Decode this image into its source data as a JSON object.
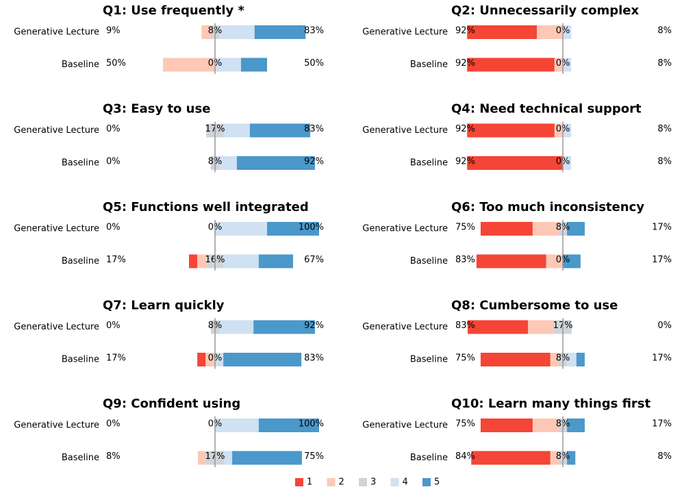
{
  "chart_data": {
    "type": "likert",
    "levels": [
      "1",
      "2",
      "3",
      "4",
      "5"
    ],
    "colors": [
      "#f44536",
      "#fdc8b5",
      "#d0d4da",
      "#cfe1f2",
      "#4b98ca"
    ],
    "xlim": [
      -100,
      100
    ],
    "panels": [
      {
        "title": "Q1: Use frequently *",
        "categories": [
          "Generative Lecture",
          "Baseline"
        ],
        "values": [
          [
            0,
            9,
            8,
            34,
            49
          ],
          [
            0,
            50,
            0,
            25,
            25
          ]
        ],
        "negative_labels": [
          "9%",
          "50%"
        ],
        "neutral_labels": [
          "8%",
          "0%"
        ],
        "positive_labels": [
          "83%",
          "50%"
        ]
      },
      {
        "title": "Q2: Unnecessarily complex",
        "categories": [
          "Generative Lecture",
          "Baseline"
        ],
        "values": [
          [
            67,
            25,
            0,
            8,
            0
          ],
          [
            84,
            8,
            0,
            8,
            0
          ]
        ],
        "negative_labels": [
          "92%",
          "92%"
        ],
        "neutral_labels": [
          "0%",
          "0%"
        ],
        "positive_labels": [
          "8%",
          "8%"
        ]
      },
      {
        "title": "Q3: Easy to use",
        "categories": [
          "Generative Lecture",
          "Baseline"
        ],
        "values": [
          [
            0,
            0,
            17,
            25,
            58
          ],
          [
            0,
            0,
            8,
            17,
            75
          ]
        ],
        "negative_labels": [
          "0%",
          "0%"
        ],
        "neutral_labels": [
          "17%",
          "8%"
        ],
        "positive_labels": [
          "83%",
          "92%"
        ]
      },
      {
        "title": "Q4: Need technical support",
        "categories": [
          "Generative Lecture",
          "Baseline"
        ],
        "values": [
          [
            84,
            8,
            0,
            8,
            0
          ],
          [
            92,
            0,
            0,
            8,
            0
          ]
        ],
        "negative_labels": [
          "92%",
          "92%"
        ],
        "neutral_labels": [
          "0%",
          "0%"
        ],
        "positive_labels": [
          "8%",
          "8%"
        ]
      },
      {
        "title": "Q5: Functions well integrated",
        "categories": [
          "Generative Lecture",
          "Baseline"
        ],
        "values": [
          [
            0,
            0,
            0,
            50,
            50
          ],
          [
            8,
            9,
            16,
            34,
            33
          ]
        ],
        "negative_labels": [
          "0%",
          "17%"
        ],
        "neutral_labels": [
          "0%",
          "16%"
        ],
        "positive_labels": [
          "100%",
          "67%"
        ]
      },
      {
        "title": "Q6: Too much inconsistency",
        "categories": [
          "Generative Lecture",
          "Baseline"
        ],
        "values": [
          [
            50,
            25,
            8,
            0,
            17
          ],
          [
            67,
            16,
            0,
            0,
            17
          ]
        ],
        "negative_labels": [
          "75%",
          "83%"
        ],
        "neutral_labels": [
          "8%",
          "0%"
        ],
        "positive_labels": [
          "17%",
          "17%"
        ]
      },
      {
        "title": "Q7: Learn quickly",
        "categories": [
          "Generative Lecture",
          "Baseline"
        ],
        "values": [
          [
            0,
            0,
            8,
            33,
            59
          ],
          [
            8,
            9,
            0,
            8,
            75
          ]
        ],
        "negative_labels": [
          "0%",
          "17%"
        ],
        "neutral_labels": [
          "8%",
          "0%"
        ],
        "positive_labels": [
          "92%",
          "83%"
        ]
      },
      {
        "title": "Q8: Cumbersome to use",
        "categories": [
          "Generative Lecture",
          "Baseline"
        ],
        "values": [
          [
            58,
            25,
            17,
            0,
            0
          ],
          [
            67,
            8,
            8,
            9,
            8
          ]
        ],
        "negative_labels": [
          "83%",
          "75%"
        ],
        "neutral_labels": [
          "17%",
          "8%"
        ],
        "positive_labels": [
          "0%",
          "17%"
        ]
      },
      {
        "title": "Q9: Confident using",
        "categories": [
          "Generative Lecture",
          "Baseline"
        ],
        "values": [
          [
            0,
            0,
            0,
            42,
            58
          ],
          [
            0,
            8,
            17,
            8,
            67
          ]
        ],
        "negative_labels": [
          "0%",
          "8%"
        ],
        "neutral_labels": [
          "0%",
          "17%"
        ],
        "positive_labels": [
          "100%",
          "75%"
        ]
      },
      {
        "title": "Q10: Learn many things first",
        "categories": [
          "Generative Lecture",
          "Baseline"
        ],
        "values": [
          [
            50,
            25,
            8,
            0,
            17
          ],
          [
            76,
            8,
            8,
            0,
            8
          ]
        ],
        "negative_labels": [
          "75%",
          "84%"
        ],
        "neutral_labels": [
          "8%",
          "8%"
        ],
        "positive_labels": [
          "17%",
          "8%"
        ]
      }
    ]
  }
}
